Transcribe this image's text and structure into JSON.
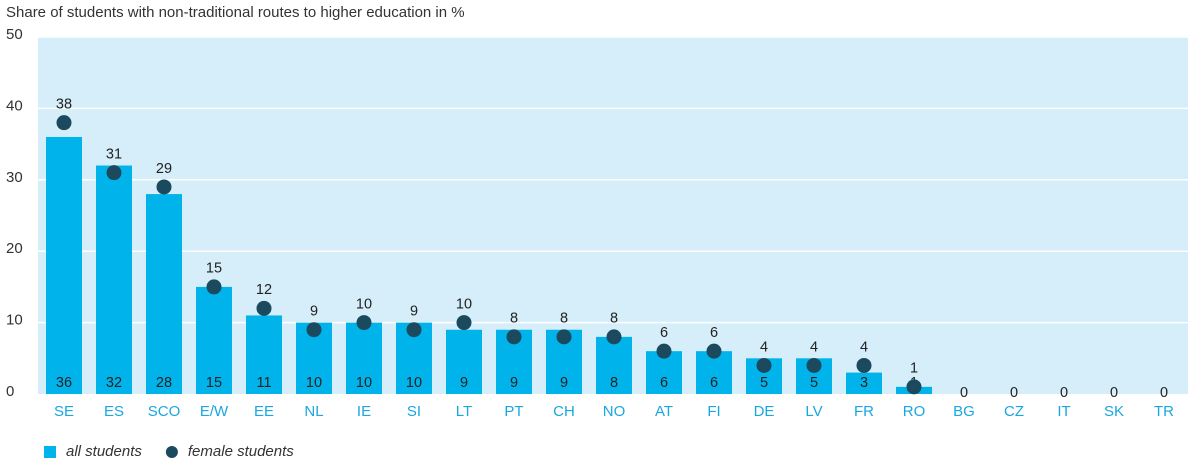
{
  "chart_data": {
    "type": "bar",
    "title": "Share of students with non-traditional routes to higher education in %",
    "categories": [
      "SE",
      "ES",
      "SCO",
      "E/W",
      "EE",
      "NL",
      "IE",
      "SI",
      "LT",
      "PT",
      "CH",
      "NO",
      "AT",
      "FI",
      "DE",
      "LV",
      "FR",
      "RO",
      "BG",
      "CZ",
      "IT",
      "SK",
      "TR"
    ],
    "series": [
      {
        "name": "all students",
        "color": "#00b4eb",
        "values": [
          36,
          32,
          28,
          15,
          11,
          10,
          10,
          10,
          9,
          9,
          9,
          8,
          6,
          6,
          5,
          5,
          3,
          1,
          0,
          0,
          0,
          0,
          0
        ]
      },
      {
        "name": "female students",
        "color": "#1b4a5f",
        "marker": "circle",
        "values": [
          38,
          31,
          29,
          15,
          12,
          9,
          10,
          9,
          10,
          8,
          8,
          8,
          6,
          6,
          4,
          4,
          4,
          1,
          null,
          null,
          null,
          null,
          null
        ]
      }
    ],
    "ylim": [
      0,
      50
    ],
    "yticks": [
      0,
      10,
      20,
      30,
      40,
      50
    ],
    "grid": true
  }
}
